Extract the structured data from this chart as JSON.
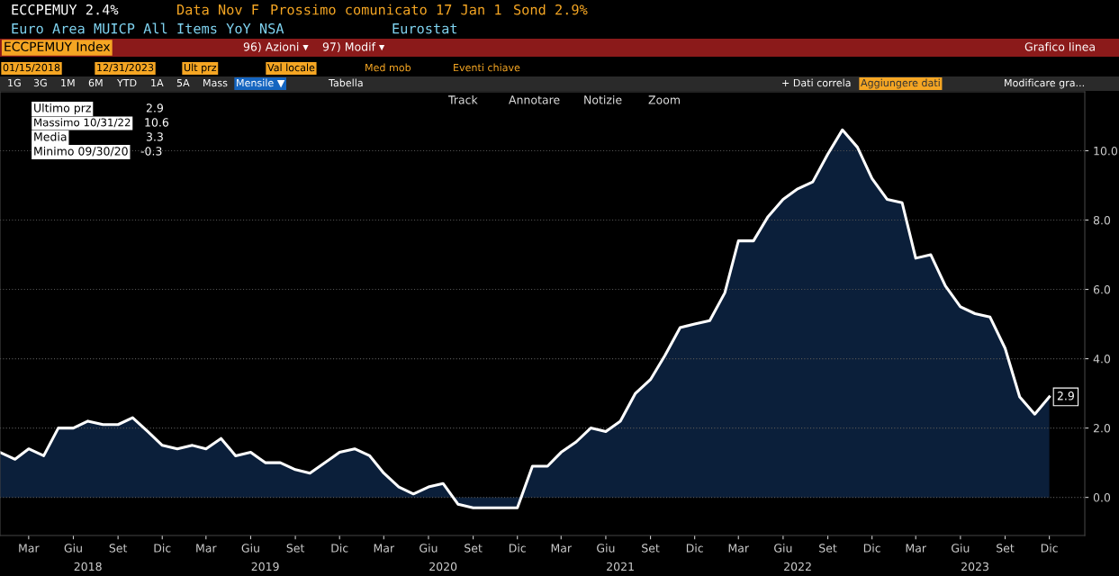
{
  "chart_data": {
    "type": "area",
    "x": [
      "2018-01",
      "2018-02",
      "2018-03",
      "2018-04",
      "2018-05",
      "2018-06",
      "2018-07",
      "2018-08",
      "2018-09",
      "2018-10",
      "2018-11",
      "2018-12",
      "2019-01",
      "2019-02",
      "2019-03",
      "2019-04",
      "2019-05",
      "2019-06",
      "2019-07",
      "2019-08",
      "2019-09",
      "2019-10",
      "2019-11",
      "2019-12",
      "2020-01",
      "2020-02",
      "2020-03",
      "2020-04",
      "2020-05",
      "2020-06",
      "2020-07",
      "2020-08",
      "2020-09",
      "2020-10",
      "2020-11",
      "2020-12",
      "2021-01",
      "2021-02",
      "2021-03",
      "2021-04",
      "2021-05",
      "2021-06",
      "2021-07",
      "2021-08",
      "2021-09",
      "2021-10",
      "2021-11",
      "2021-12",
      "2022-01",
      "2022-02",
      "2022-03",
      "2022-04",
      "2022-05",
      "2022-06",
      "2022-07",
      "2022-08",
      "2022-09",
      "2022-10",
      "2022-11",
      "2022-12",
      "2023-01",
      "2023-02",
      "2023-03",
      "2023-04",
      "2023-05",
      "2023-06",
      "2023-07",
      "2023-08",
      "2023-09",
      "2023-10",
      "2023-11",
      "2023-12"
    ],
    "series": [
      {
        "color": "#ffffff",
        "values": [
          1.3,
          1.1,
          1.4,
          1.2,
          2.0,
          2.0,
          2.2,
          2.1,
          2.1,
          2.3,
          1.9,
          1.5,
          1.4,
          1.5,
          1.4,
          1.7,
          1.2,
          1.3,
          1.0,
          1.0,
          0.8,
          0.7,
          1.0,
          1.3,
          1.4,
          1.2,
          0.7,
          0.3,
          0.1,
          0.3,
          0.4,
          -0.2,
          -0.3,
          -0.3,
          -0.3,
          -0.3,
          0.9,
          0.9,
          1.3,
          1.6,
          2.0,
          1.9,
          2.2,
          3.0,
          3.4,
          4.1,
          4.9,
          5.0,
          5.1,
          5.9,
          7.4,
          7.4,
          8.1,
          8.6,
          8.9,
          9.1,
          9.9,
          10.6,
          10.1,
          9.2,
          8.6,
          8.5,
          6.9,
          7.0,
          6.1,
          5.5,
          5.3,
          5.2,
          4.3,
          2.9,
          2.4,
          2.9
        ],
        "value_labels": [
          null,
          null,
          null,
          null,
          null,
          null,
          null,
          null,
          null,
          null,
          null,
          null,
          null,
          null,
          null,
          null,
          null,
          null,
          null,
          null,
          null,
          null,
          null,
          null,
          null,
          null,
          null,
          null,
          null,
          null,
          null,
          null,
          null,
          null,
          null,
          null,
          null,
          null,
          null,
          null,
          null,
          null,
          null,
          null,
          null,
          null,
          null,
          null,
          null,
          null,
          null,
          null,
          null,
          null,
          null,
          null,
          null,
          null,
          null,
          null,
          null,
          null,
          null,
          null,
          null,
          null,
          null,
          null,
          null,
          null,
          null,
          "2.9"
        ]
      }
    ],
    "xlim": [
      "2018-01-01",
      "2024-02-12"
    ],
    "xticks": [
      {
        "value": "2018-03-01",
        "label": "Mar"
      },
      {
        "value": "2018-06-01",
        "label": "Giu"
      },
      {
        "value": "2018-09-01",
        "label": "Set"
      },
      {
        "value": "2018-12-01",
        "label": "Dic"
      },
      {
        "value": "2019-03-01",
        "label": "Mar"
      },
      {
        "value": "2019-06-01",
        "label": "Giu"
      },
      {
        "value": "2019-09-01",
        "label": "Set"
      },
      {
        "value": "2019-12-01",
        "label": "Dic"
      },
      {
        "value": "2020-03-01",
        "label": "Mar"
      },
      {
        "value": "2020-06-01",
        "label": "Giu"
      },
      {
        "value": "2020-09-01",
        "label": "Set"
      },
      {
        "value": "2020-12-01",
        "label": "Dic"
      },
      {
        "value": "2021-03-01",
        "label": "Mar"
      },
      {
        "value": "2021-06-01",
        "label": "Giu"
      },
      {
        "value": "2021-09-01",
        "label": "Set"
      },
      {
        "value": "2021-12-01",
        "label": "Dic"
      },
      {
        "value": "2022-03-01",
        "label": "Mar"
      },
      {
        "value": "2022-06-01",
        "label": "Giu"
      },
      {
        "value": "2022-09-01",
        "label": "Set"
      },
      {
        "value": "2022-12-01",
        "label": "Dic"
      },
      {
        "value": "2023-03-01",
        "label": "Mar"
      },
      {
        "value": "2023-06-01",
        "label": "Giu"
      },
      {
        "value": "2023-09-01",
        "label": "Set"
      },
      {
        "value": "2023-12-01",
        "label": "Dic"
      }
    ],
    "x2lim": [
      "2018-01-01",
      "2024-02-12"
    ],
    "x2ticks": [
      {
        "value": "2018-07-01",
        "label": "2018"
      },
      {
        "value": "2019-07-01",
        "label": "2019"
      },
      {
        "value": "2020-07-01",
        "label": "2020"
      },
      {
        "value": "2021-07-01",
        "label": "2021"
      },
      {
        "value": "2022-07-01",
        "label": "2022"
      },
      {
        "value": "2023-07-01",
        "label": "2023"
      }
    ],
    "ylim": [
      -1.1,
      11.7
    ],
    "yticks": [
      {
        "value": 0,
        "label": "0.0"
      },
      {
        "value": 2,
        "label": "2.0"
      },
      {
        "value": 4,
        "label": "4.0"
      },
      {
        "value": 6,
        "label": "6.0"
      },
      {
        "value": 8,
        "label": "8.0"
      },
      {
        "value": 10,
        "label": "10.0"
      }
    ],
    "grid": "y",
    "marker": "none",
    "line_style": "solid",
    "annotations": [
      "ECCPEMUY 2.4%",
      "Data Nov F",
      "Prossimo comunicato 17 Jan 1",
      "Sond 2.9%",
      "Euro Area MUICP All Items YoY NSA",
      "Eurostat",
      "ECCPEMUY Index",
      "96) Azioni ▾",
      "97) Modif ▾",
      "Grafico linea",
      "01/15/2018",
      "12/31/2023",
      "Ult prz",
      "Val locale",
      "Med mob",
      "Eventi chiave",
      "1G",
      "3G",
      "1M",
      "6M",
      "YTD",
      "1A",
      "5A",
      "Mass",
      "Mensile ▼",
      "Tabella",
      "+ Dati correla",
      "Aggiungere dati",
      "Modificare gra...",
      "Track",
      "Annotare",
      "Notizie",
      "Zoom",
      "Ultimo prz",
      "2.9",
      "Massimo 10/31/22",
      "10.6",
      "Media",
      "3.3",
      "Minimo 09/30/20",
      "-0.3"
    ]
  }
}
